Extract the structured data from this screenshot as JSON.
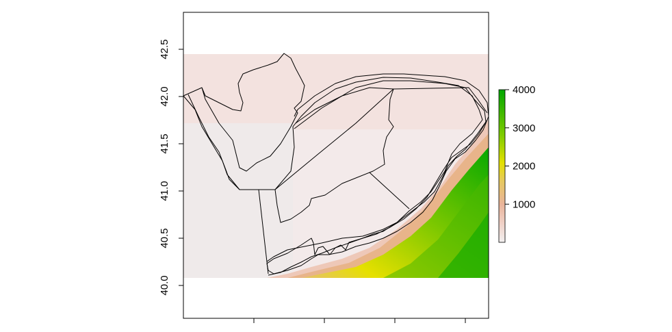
{
  "map": {
    "y_axis": {
      "ticks": [
        "40.0",
        "40.5",
        "41.0",
        "41.5",
        "42.0",
        "42.5"
      ],
      "tick_values": [
        40.0,
        40.5,
        41.0,
        41.5,
        42.0,
        42.5
      ]
    },
    "x_axis": {
      "ticks": [
        "",
        "",
        "",
        ""
      ]
    },
    "legend": {
      "labels": [
        "1000",
        "2000",
        "3000",
        "4000"
      ],
      "values": [
        1000,
        2000,
        3000,
        4000
      ],
      "range": [
        0,
        4000
      ],
      "colors": {
        "low": "#f2e6e6",
        "mid_low": "#e8b090",
        "mid": "#e6e000",
        "high": "#00a600"
      }
    }
  }
}
